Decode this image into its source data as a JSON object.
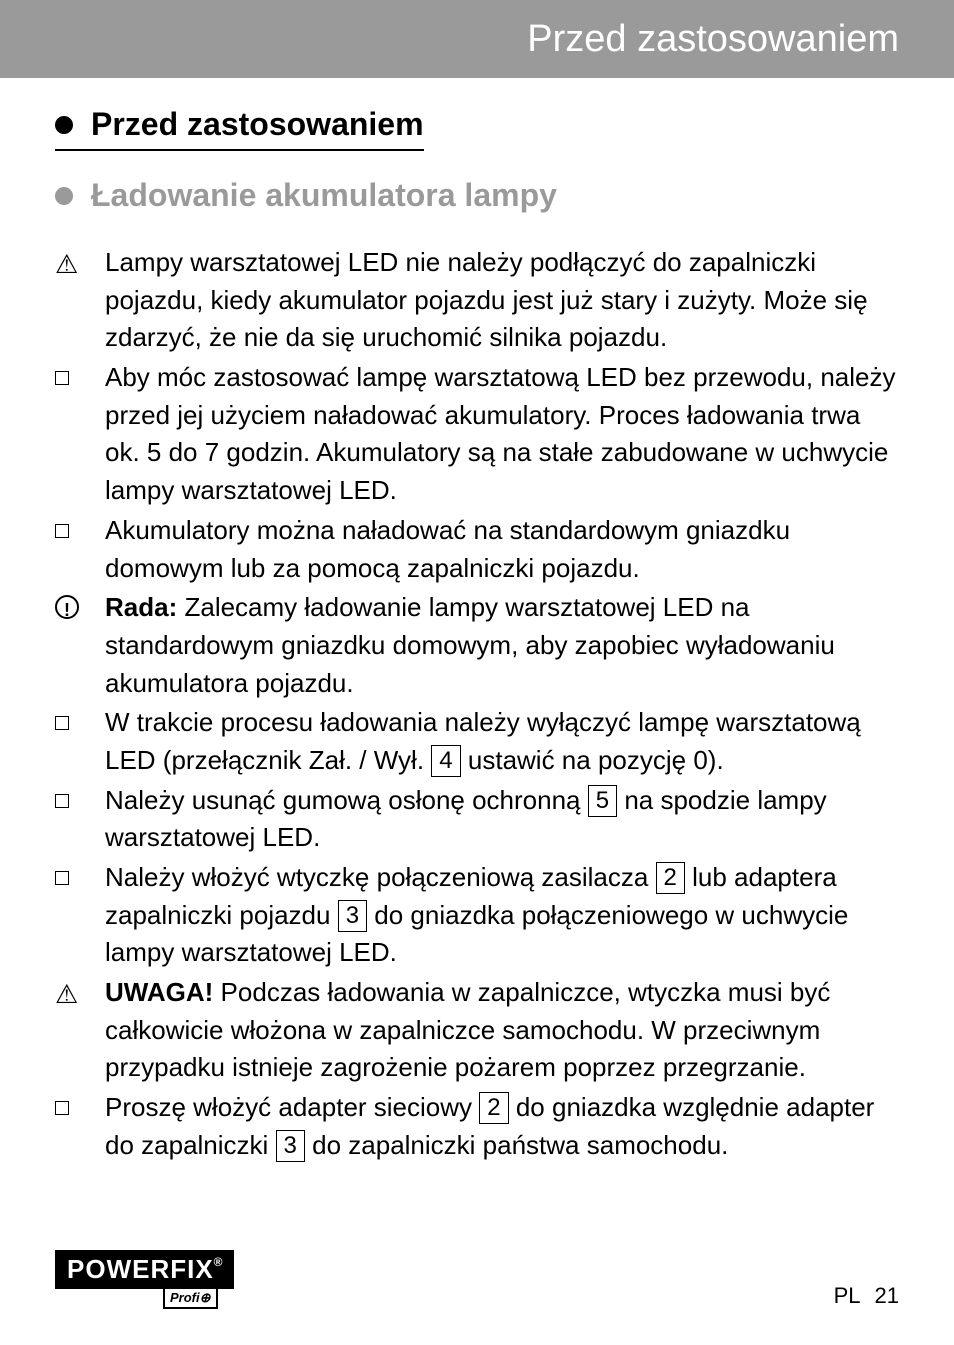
{
  "header": {
    "title": "Przed zastosowaniem"
  },
  "h1": "Przed zastosowaniem",
  "h2": "Ładowanie akumulatora lampy",
  "items": {
    "i0": "Lampy warsztatowej LED nie należy podłączyć do zapalniczki pojazdu, kiedy akumulator pojazdu jest już stary i zużyty. Może się zdarzyć, że nie da się uruchomić silnika pojazdu.",
    "i1": "Aby móc zastosować lampę warsztatową LED bez przewodu, należy przed jej użyciem naładować akumulatory. Proces ładowania trwa ok. 5 do 7 godzin. Akumulatory są na stałe zabudowane w uchwycie lampy warsztatowej LED.",
    "i2": "Akumulatory można naładować na standardowym gniazdku domowym lub za pomocą zapalniczki pojazdu.",
    "i3_label": "Rada:",
    "i3_rest": " Zalecamy ładowanie lampy warsztatowej LED na standardowym gniazdku domowym, aby zapobiec wyładowaniu akumulatora pojazdu.",
    "i4_a": "W trakcie procesu ładowania należy wyłączyć lampę warsztatową LED (przełącznik Zał. / Wył. ",
    "i4_n": "4",
    "i4_b": " ustawić na pozycję 0).",
    "i5_a": "Należy usunąć gumową osłonę ochronną ",
    "i5_n": "5",
    "i5_b": " na spodzie lampy warsztatowej LED.",
    "i6_a": "Należy włożyć wtyczkę połączeniową zasilacza ",
    "i6_n1": "2",
    "i6_b": " lub adaptera zapalniczki pojazdu ",
    "i6_n2": "3",
    "i6_c": " do gniazdka połączeniowego w uchwycie lampy warsztatowej LED.",
    "i7_label": "UWAGA!",
    "i7_rest": " Podczas ładowania w zapalniczce, wtyczka musi być całkowicie włożona w zapalniczce samochodu. W przeciwnym przypadku istnieje zagrożenie pożarem poprzez przegrzanie.",
    "i8_a": "Proszę włożyć adapter sieciowy ",
    "i8_n1": "2",
    "i8_b": " do gniazdka względnie adapter do zapalniczki ",
    "i8_n2": "3",
    "i8_c": " do zapalniczki państwa samochodu."
  },
  "logo": {
    "main": "POWERFIX",
    "sub": "Profi⊕"
  },
  "footer": {
    "lang": "PL",
    "page": "21"
  }
}
